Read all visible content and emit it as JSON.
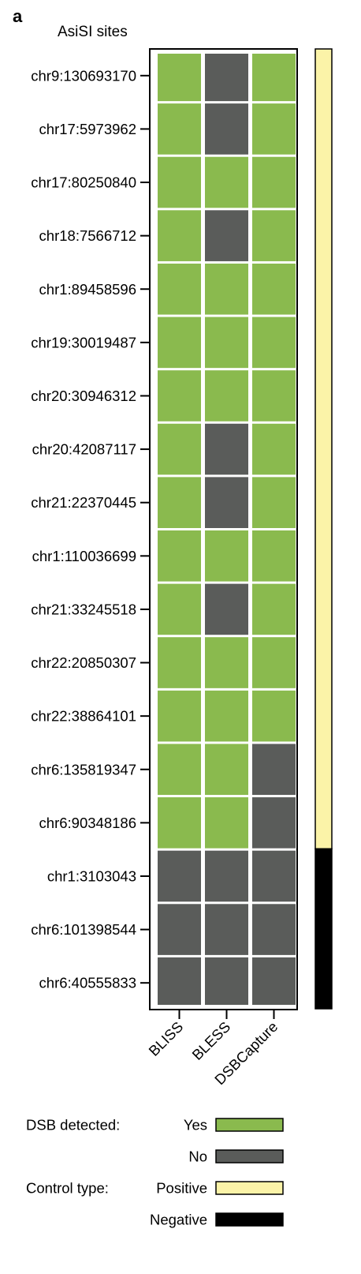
{
  "panel_label": "a",
  "chart_data": {
    "type": "heatmap",
    "title": "AsiSI sites",
    "rows": [
      "chr9:130693170",
      "chr17:5973962",
      "chr17:80250840",
      "chr18:7566712",
      "chr1:89458596",
      "chr19:30019487",
      "chr20:30946312",
      "chr20:42087117",
      "chr21:22370445",
      "chr1:110036699",
      "chr21:33245518",
      "chr22:20850307",
      "chr22:38864101",
      "chr6:135819347",
      "chr6:90348186",
      "chr1:3103043",
      "chr6:101398544",
      "chr6:40555833"
    ],
    "columns": [
      "BLISS",
      "BLESS",
      "DSBCapture"
    ],
    "values": [
      [
        "Yes",
        "No",
        "Yes"
      ],
      [
        "Yes",
        "No",
        "Yes"
      ],
      [
        "Yes",
        "Yes",
        "Yes"
      ],
      [
        "Yes",
        "No",
        "Yes"
      ],
      [
        "Yes",
        "Yes",
        "Yes"
      ],
      [
        "Yes",
        "Yes",
        "Yes"
      ],
      [
        "Yes",
        "Yes",
        "Yes"
      ],
      [
        "Yes",
        "No",
        "Yes"
      ],
      [
        "Yes",
        "No",
        "Yes"
      ],
      [
        "Yes",
        "Yes",
        "Yes"
      ],
      [
        "Yes",
        "No",
        "Yes"
      ],
      [
        "Yes",
        "Yes",
        "Yes"
      ],
      [
        "Yes",
        "Yes",
        "Yes"
      ],
      [
        "Yes",
        "Yes",
        "No"
      ],
      [
        "Yes",
        "Yes",
        "No"
      ],
      [
        "No",
        "No",
        "No"
      ],
      [
        "No",
        "No",
        "No"
      ],
      [
        "No",
        "No",
        "No"
      ]
    ],
    "control_type": [
      "Positive",
      "Positive",
      "Positive",
      "Positive",
      "Positive",
      "Positive",
      "Positive",
      "Positive",
      "Positive",
      "Positive",
      "Positive",
      "Positive",
      "Positive",
      "Positive",
      "Positive",
      "Negative",
      "Negative",
      "Negative"
    ],
    "colors": {
      "Yes": "#8aba4e",
      "No": "#5a5c5a",
      "Positive": "#fbf3a8",
      "Negative": "#000000",
      "frame": "#000000",
      "gap": "#ffffff"
    },
    "legend": {
      "dsb_title": "DSB detected:",
      "dsb_items": [
        "Yes",
        "No"
      ],
      "control_title": "Control type:",
      "control_items": [
        "Positive",
        "Negative"
      ],
      "placement": "bottom"
    }
  }
}
